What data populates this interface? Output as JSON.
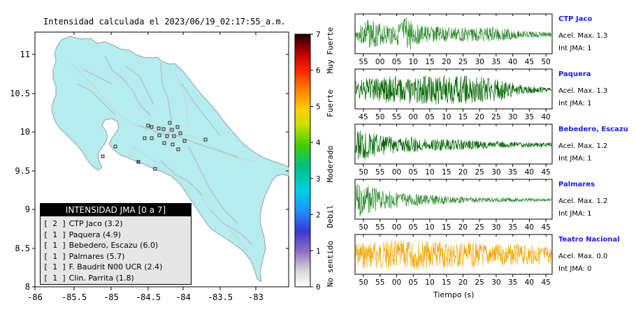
{
  "map": {
    "title": "Intensidad calculada el 2023/06/19_02:17:55_a.m.",
    "xticks": [
      "-86",
      "-85.5",
      "-85",
      "-84.5",
      "-84",
      "-83.5",
      "-83"
    ],
    "yticks": [
      "11",
      "10.5",
      "10",
      "9.5",
      "9",
      "8.5",
      "8"
    ],
    "land_color": "#b5ecee",
    "ocean_color": "#ffffff"
  },
  "legend": {
    "header": "INTENSIDAD JMA [0 a 7]",
    "items": [
      {
        "count": "[ 2 ]",
        "label": "CTP Jaco (3.2)"
      },
      {
        "count": "[ 1 ]",
        "label": "Paquera (4.9)"
      },
      {
        "count": "[ 1 ]",
        "label": "Bebedero, Escazu (6.0)"
      },
      {
        "count": "[ 1 ]",
        "label": "Palmares (5.7)"
      },
      {
        "count": "[ 1 ]",
        "label": "F. Baudrit N00 UCR (2.4)"
      },
      {
        "count": "[ 1 ]",
        "label": "Clin. Parrita (1.8)"
      }
    ]
  },
  "colorbar": {
    "ticks": [
      "7",
      "6",
      "5",
      "4",
      "3",
      "2",
      "1",
      "0"
    ],
    "labels": [
      "Muy Fuerte",
      "Fuerte",
      "Moderado",
      "Debil",
      "No sentido"
    ]
  },
  "chart_data": [
    {
      "type": "line",
      "title": "CTP Jaco",
      "info": [
        "Acel. Max. 1.3",
        "Int JMA: 1"
      ],
      "x_ticks": [
        "55",
        "00",
        "05",
        "10",
        "15",
        "20",
        "25",
        "30",
        "35",
        "40",
        "45",
        "50"
      ],
      "color": "#2e8b2e",
      "envelope": [
        [
          0,
          0.2
        ],
        [
          0.05,
          0.9
        ],
        [
          0.14,
          0.6
        ],
        [
          0.22,
          0.65
        ],
        [
          0.26,
          1.0
        ],
        [
          0.33,
          0.5
        ],
        [
          0.45,
          0.45
        ],
        [
          0.58,
          0.4
        ],
        [
          0.72,
          0.42
        ],
        [
          0.85,
          0.2
        ],
        [
          1,
          0.15
        ]
      ]
    },
    {
      "type": "line",
      "title": "Paquera",
      "info": [
        "Acel. Max. 1.3",
        "Int JMA: 1"
      ],
      "x_ticks": [
        "45",
        "50",
        "55",
        "00",
        "05",
        "10",
        "15",
        "20",
        "25",
        "30",
        "35",
        "40"
      ],
      "color": "#006400",
      "envelope": [
        [
          0,
          0.55
        ],
        [
          0.2,
          0.8
        ],
        [
          0.4,
          0.85
        ],
        [
          0.6,
          0.8
        ],
        [
          0.75,
          0.6
        ],
        [
          0.85,
          0.25
        ],
        [
          1,
          0.1
        ]
      ]
    },
    {
      "type": "line",
      "title": "Bebedero, Escazu",
      "info": [
        "Acel. Max. 1.2",
        "Int JMA: 1"
      ],
      "x_ticks": [
        "50",
        "55",
        "00",
        "05",
        "10",
        "15",
        "20",
        "25",
        "30",
        "35",
        "40",
        "45"
      ],
      "color": "#006400",
      "envelope": [
        [
          0,
          0.6
        ],
        [
          0.02,
          1.0
        ],
        [
          0.15,
          0.55
        ],
        [
          0.4,
          0.35
        ],
        [
          0.7,
          0.2
        ],
        [
          1,
          0.12
        ]
      ]
    },
    {
      "type": "line",
      "title": "Palmares",
      "info": [
        "Acel. Max. 1.2",
        "Int JMA: 1"
      ],
      "x_ticks": [
        "50",
        "55",
        "00",
        "05",
        "10",
        "15",
        "20",
        "25",
        "30",
        "35",
        "40",
        "45"
      ],
      "color": "#2e8b2e",
      "envelope": [
        [
          0,
          0.9
        ],
        [
          0.02,
          1.0
        ],
        [
          0.12,
          0.55
        ],
        [
          0.3,
          0.35
        ],
        [
          0.6,
          0.15
        ],
        [
          1,
          0.08
        ]
      ]
    },
    {
      "type": "line",
      "title": "Teatro Nacional",
      "info": [
        "Acel. Max. 0.0",
        "Int JMA: 0"
      ],
      "x_ticks": [
        "50",
        "55",
        "00",
        "05",
        "10",
        "15",
        "20",
        "25",
        "30",
        "35",
        "40",
        "45"
      ],
      "color": "#f5a500",
      "envelope": [
        [
          0,
          0.75
        ],
        [
          0.3,
          0.85
        ],
        [
          0.6,
          0.7
        ],
        [
          1,
          0.5
        ]
      ]
    }
  ],
  "xlabel": "Tiempo (s)"
}
